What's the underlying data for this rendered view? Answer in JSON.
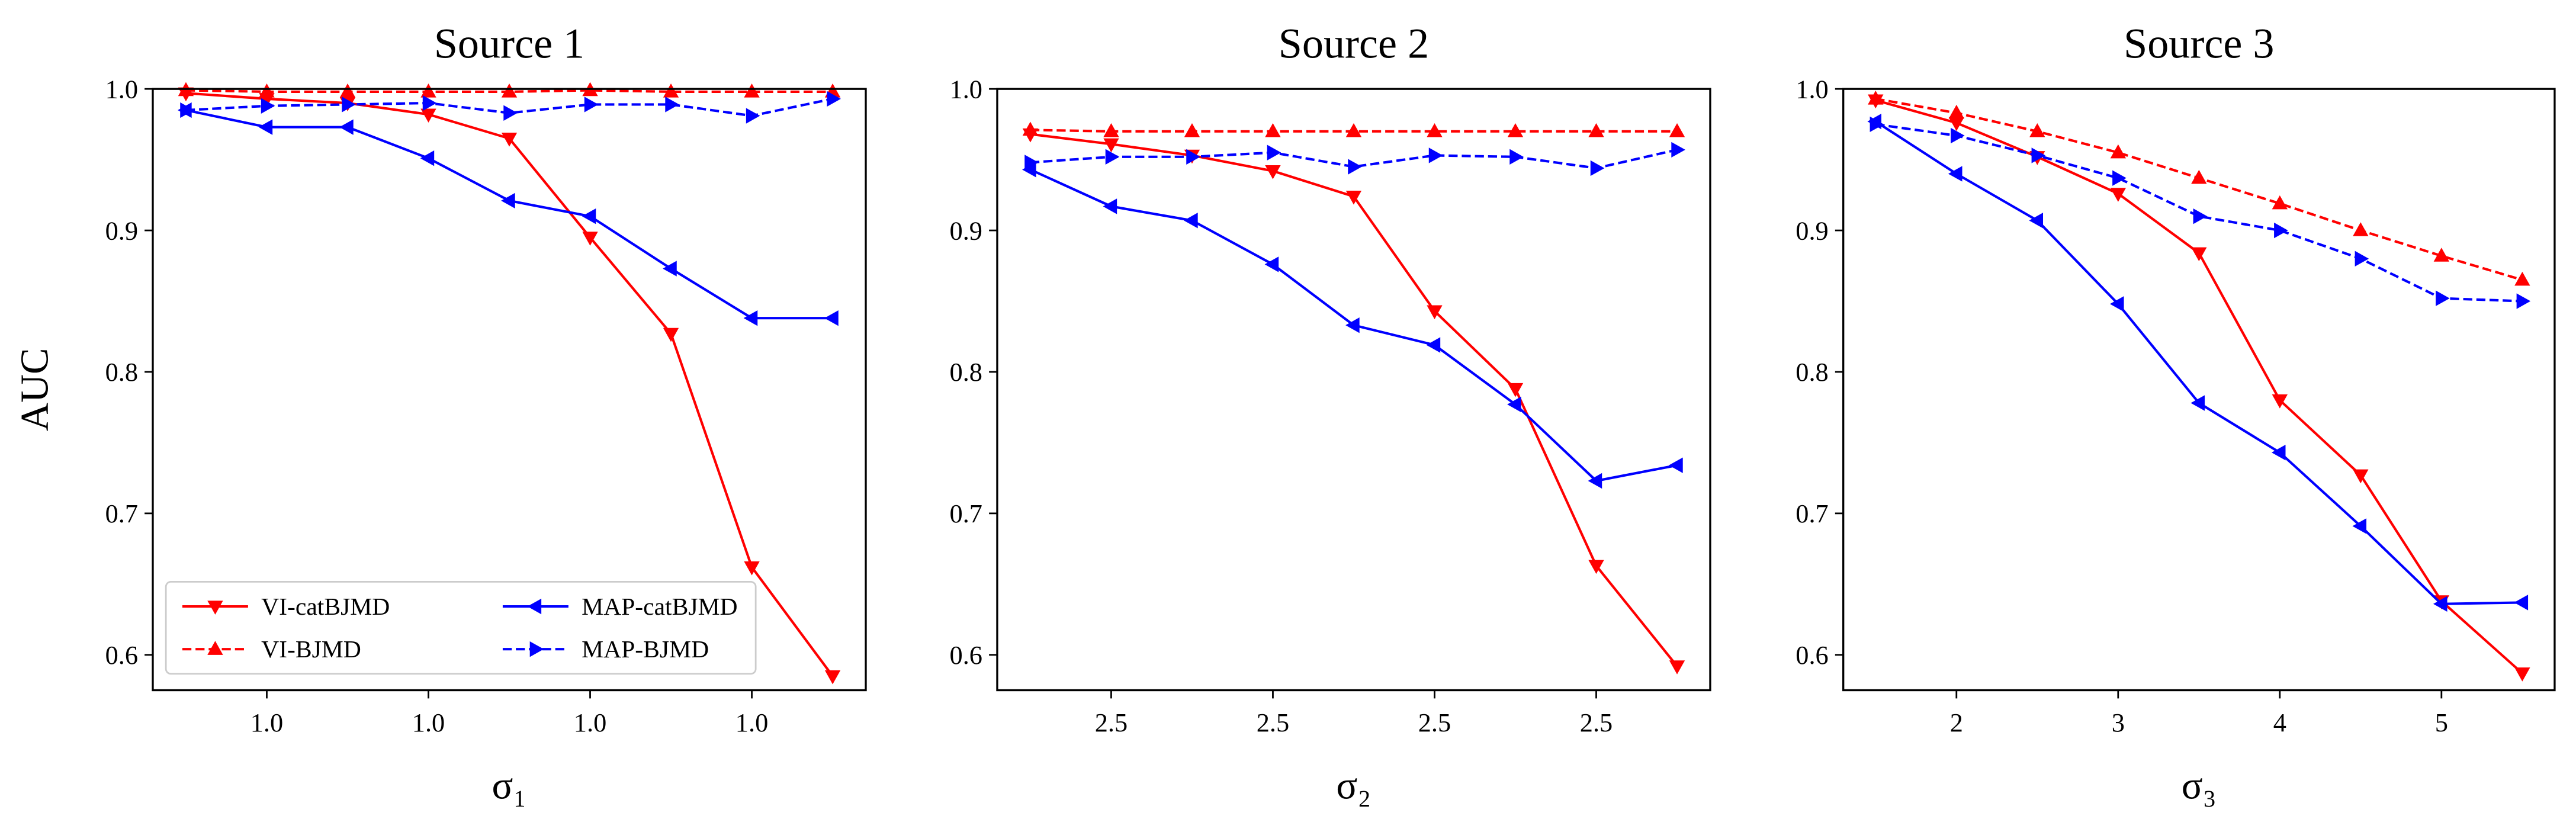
{
  "chart_data": [
    {
      "type": "line",
      "title": "Source 1",
      "xlabel": "σ₁",
      "ylabel": "AUC",
      "legend": "lower left",
      "x": [
        0.96,
        0.97,
        0.98,
        0.99,
        1.0,
        1.01,
        1.02,
        1.03,
        1.04
      ],
      "xlim": [
        0.9559,
        1.0441
      ],
      "xticks": [
        {
          "value": 0.97,
          "label": "1.0"
        },
        {
          "value": 0.99,
          "label": "1.0"
        },
        {
          "value": 1.01,
          "label": "1.0"
        },
        {
          "value": 1.03,
          "label": "1.0"
        }
      ],
      "ylim": [
        0.575,
        1.0
      ],
      "yticks": [
        0.6,
        0.7,
        0.8,
        0.9,
        {
          "value": 1,
          "label": "1.0"
        }
      ],
      "series": [
        {
          "name": "VI-catBJMD",
          "color": "#ff0000",
          "linestyle": "solid",
          "marker": "v",
          "values": [
            0.997,
            0.993,
            0.99,
            0.982,
            0.965,
            0.895,
            0.827,
            0.662,
            0.585
          ]
        },
        {
          "name": "MAP-catBJMD",
          "color": "#0000ff",
          "linestyle": "solid",
          "marker": "<",
          "values": [
            0.985,
            0.973,
            0.973,
            0.951,
            0.921,
            0.91,
            0.873,
            0.838,
            0.838
          ]
        },
        {
          "name": "VI-BJMD",
          "color": "#ff0000",
          "linestyle": "dashed",
          "marker": "^",
          "values": [
            0.999,
            0.998,
            0.998,
            0.998,
            0.998,
            0.999,
            0.998,
            0.998,
            0.998
          ]
        },
        {
          "name": "MAP-BJMD",
          "color": "#0000ff",
          "linestyle": "dashed",
          "marker": ">",
          "values": [
            0.985,
            0.988,
            0.989,
            0.99,
            0.983,
            0.989,
            0.989,
            0.981,
            0.993
          ]
        }
      ]
    },
    {
      "type": "line",
      "title": "Source 2",
      "xlabel": "σ₂",
      "x": [
        2.46,
        2.47,
        2.48,
        2.49,
        2.5,
        2.51,
        2.52,
        2.53,
        2.54
      ],
      "xlim": [
        2.4559,
        2.5441
      ],
      "xticks": [
        {
          "value": 2.47,
          "label": "2.5"
        },
        {
          "value": 2.49,
          "label": "2.5"
        },
        {
          "value": 2.51,
          "label": "2.5"
        },
        {
          "value": 2.53,
          "label": "2.5"
        }
      ],
      "ylim": [
        0.575,
        1.0
      ],
      "yticks": [
        0.6,
        0.7,
        0.8,
        0.9,
        {
          "value": 1,
          "label": "1.0"
        }
      ],
      "series": [
        {
          "name": "VI-catBJMD",
          "color": "#ff0000",
          "linestyle": "solid",
          "marker": "v",
          "values": [
            0.968,
            0.961,
            0.953,
            0.942,
            0.924,
            0.843,
            0.788,
            0.663,
            0.592
          ]
        },
        {
          "name": "MAP-catBJMD",
          "color": "#0000ff",
          "linestyle": "solid",
          "marker": "<",
          "values": [
            0.943,
            0.917,
            0.907,
            0.876,
            0.833,
            0.819,
            0.777,
            0.723,
            0.734
          ]
        },
        {
          "name": "VI-BJMD",
          "color": "#ff0000",
          "linestyle": "dashed",
          "marker": "^",
          "values": [
            0.971,
            0.97,
            0.97,
            0.97,
            0.97,
            0.97,
            0.97,
            0.97,
            0.97
          ]
        },
        {
          "name": "MAP-BJMD",
          "color": "#0000ff",
          "linestyle": "dashed",
          "marker": ">",
          "values": [
            0.948,
            0.952,
            0.952,
            0.955,
            0.945,
            0.953,
            0.952,
            0.944,
            0.957
          ]
        }
      ]
    },
    {
      "type": "line",
      "title": "Source 3",
      "xlabel": "σ₃",
      "x": [
        1.5,
        2,
        2.5,
        3,
        3.5,
        4,
        4.5,
        5,
        5.5
      ],
      "xlim": [
        1.3,
        5.7
      ],
      "xticks": [
        2,
        3,
        4,
        5
      ],
      "ylim": [
        0.575,
        1.0
      ],
      "yticks": [
        0.6,
        0.7,
        0.8,
        0.9,
        {
          "value": 1,
          "label": "1.0"
        }
      ],
      "series": [
        {
          "name": "VI-catBJMD",
          "color": "#ff0000",
          "linestyle": "solid",
          "marker": "v",
          "values": [
            0.992,
            0.976,
            0.952,
            0.926,
            0.884,
            0.78,
            0.727,
            0.638,
            0.587
          ]
        },
        {
          "name": "MAP-catBJMD",
          "color": "#0000ff",
          "linestyle": "solid",
          "marker": "<",
          "values": [
            0.977,
            0.94,
            0.907,
            0.848,
            0.778,
            0.743,
            0.691,
            0.636,
            0.637
          ]
        },
        {
          "name": "VI-BJMD",
          "color": "#ff0000",
          "linestyle": "dashed",
          "marker": "^",
          "values": [
            0.993,
            0.983,
            0.97,
            0.955,
            0.937,
            0.919,
            0.9,
            0.882,
            0.865
          ]
        },
        {
          "name": "MAP-BJMD",
          "color": "#0000ff",
          "linestyle": "dashed",
          "marker": ">",
          "values": [
            0.975,
            0.967,
            0.953,
            0.937,
            0.91,
            0.9,
            0.88,
            0.852,
            0.85
          ]
        }
      ]
    }
  ]
}
